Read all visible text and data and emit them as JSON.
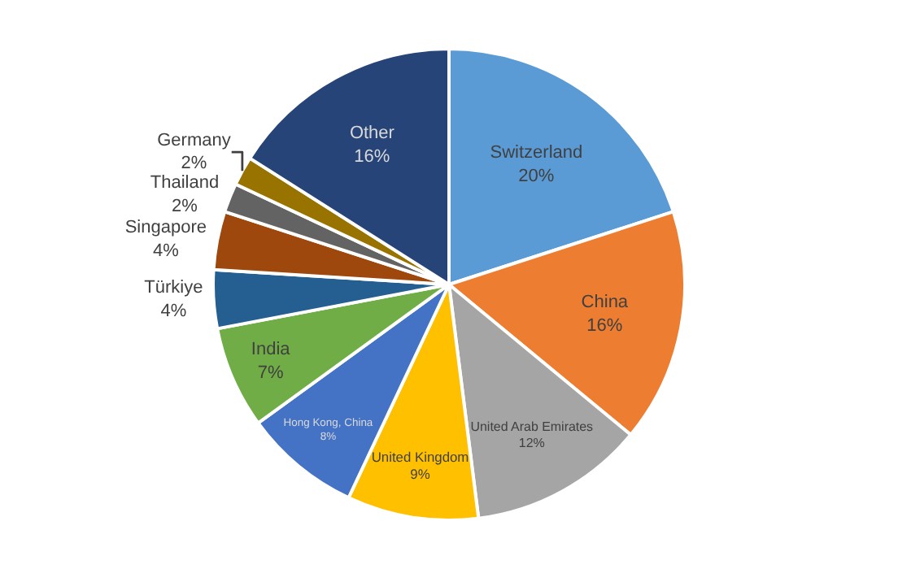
{
  "chart_data": {
    "type": "pie",
    "categories": [
      "Switzerland",
      "China",
      "United Arab Emirates",
      "United Kingdom",
      "Hong Kong, China",
      "India",
      "Türkiye",
      "Singapore",
      "Thailand",
      "Germany",
      "Other"
    ],
    "values": [
      20,
      16,
      12,
      9,
      8,
      7,
      4,
      4,
      2,
      2,
      16
    ],
    "value_labels": [
      "20%",
      "16%",
      "12%",
      "9%",
      "8%",
      "7%",
      "4%",
      "4%",
      "2%",
      "2%",
      "16%"
    ],
    "colors": [
      "#5b9bd5",
      "#ed7d31",
      "#a5a5a5",
      "#ffc000",
      "#4472c4",
      "#70ad47",
      "#255e91",
      "#9e480e",
      "#636363",
      "#997300",
      "#264478"
    ],
    "legend": false
  }
}
